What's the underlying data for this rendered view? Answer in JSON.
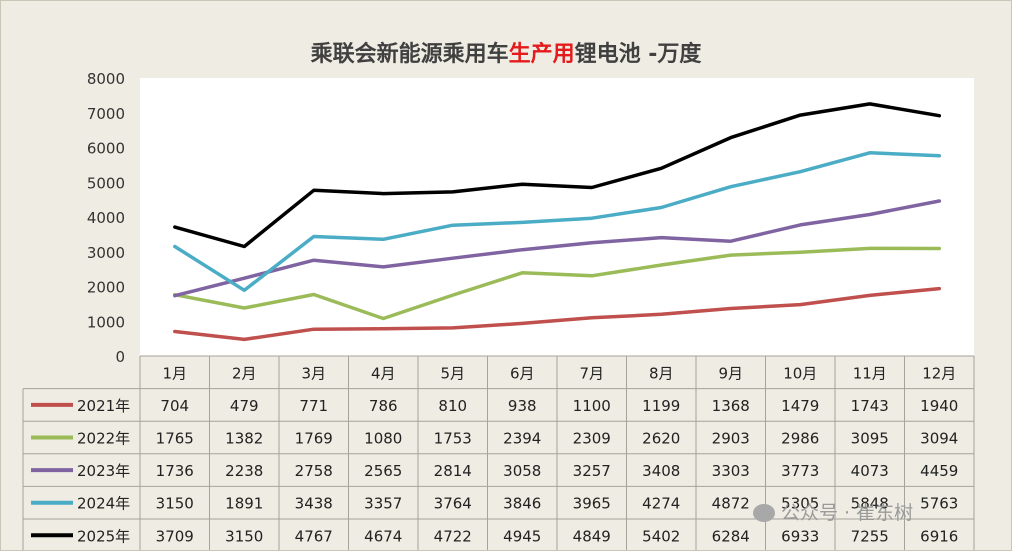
{
  "chart_data": {
    "type": "line",
    "title_parts": [
      {
        "text": "乘联会新能源乘用车",
        "color": "#404040"
      },
      {
        "text": "生产用",
        "color": "#e41a1c"
      },
      {
        "text": "锂电池 -万度",
        "color": "#404040"
      }
    ],
    "categories": [
      "1月",
      "2月",
      "3月",
      "4月",
      "5月",
      "6月",
      "7月",
      "8月",
      "9月",
      "10月",
      "11月",
      "12月"
    ],
    "ylim": [
      0,
      8000
    ],
    "yticks": [
      0,
      1000,
      2000,
      3000,
      4000,
      5000,
      6000,
      7000,
      8000
    ],
    "grid": false,
    "legend_position": "data-table-left",
    "series": [
      {
        "name": "2021年",
        "color": "#c0504d",
        "values": [
          704,
          479,
          771,
          786,
          810,
          938,
          1100,
          1199,
          1368,
          1479,
          1743,
          1940
        ]
      },
      {
        "name": "2022年",
        "color": "#9bbb59",
        "values": [
          1765,
          1382,
          1769,
          1080,
          1753,
          2394,
          2309,
          2620,
          2903,
          2986,
          3095,
          3094
        ]
      },
      {
        "name": "2023年",
        "color": "#8064a2",
        "values": [
          1736,
          2238,
          2758,
          2565,
          2814,
          3058,
          3257,
          3408,
          3303,
          3773,
          4073,
          4459
        ]
      },
      {
        "name": "2024年",
        "color": "#4bacc6",
        "values": [
          3150,
          1891,
          3438,
          3357,
          3764,
          3846,
          3965,
          4274,
          4872,
          5305,
          5848,
          5763
        ]
      },
      {
        "name": "2025年",
        "color": "#000000",
        "values": [
          3709,
          3150,
          4767,
          4674,
          4722,
          4945,
          4849,
          5402,
          6284,
          6933,
          7255,
          6916
        ]
      }
    ]
  },
  "watermark": {
    "text": "公众号 · 崔东树",
    "icon": "wechat-icon"
  }
}
